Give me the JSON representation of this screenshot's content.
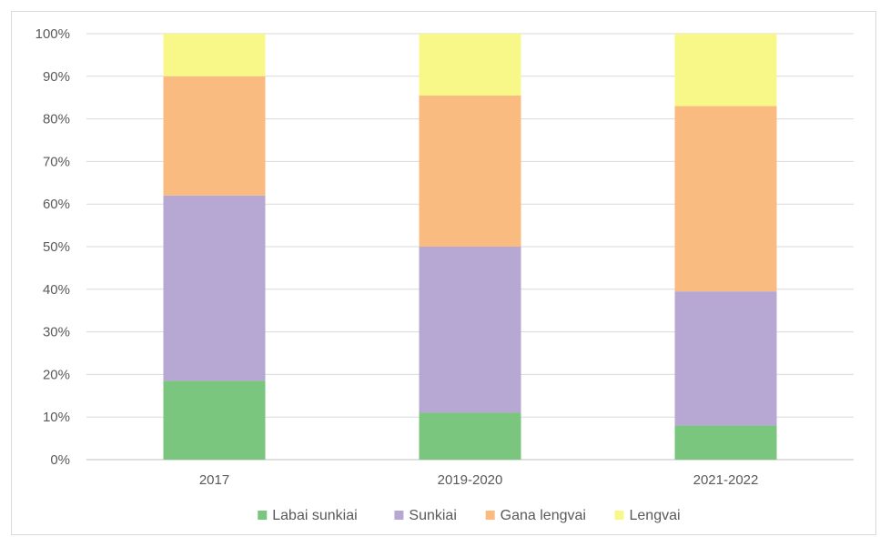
{
  "chart_data": {
    "type": "bar",
    "stacked": true,
    "percent": true,
    "categories": [
      "2017",
      "2019-2020",
      "2021-2022"
    ],
    "series": [
      {
        "name": "Labai sunkiai",
        "color": "#7bc67e",
        "values": [
          18.5,
          11,
          8
        ]
      },
      {
        "name": "Sunkiai",
        "color": "#b7a8d3",
        "values": [
          43.5,
          39,
          31.5
        ]
      },
      {
        "name": "Gana lengvai",
        "color": "#f9bb80",
        "values": [
          28,
          35.5,
          43.5
        ]
      },
      {
        "name": "Lengvai",
        "color": "#f8f888",
        "values": [
          10,
          14.5,
          17
        ]
      }
    ],
    "ylim": [
      0,
      100
    ],
    "yticks": [
      "0%",
      "10%",
      "20%",
      "30%",
      "40%",
      "50%",
      "60%",
      "70%",
      "80%",
      "90%",
      "100%"
    ],
    "grid": true,
    "legend_position": "bottom"
  }
}
